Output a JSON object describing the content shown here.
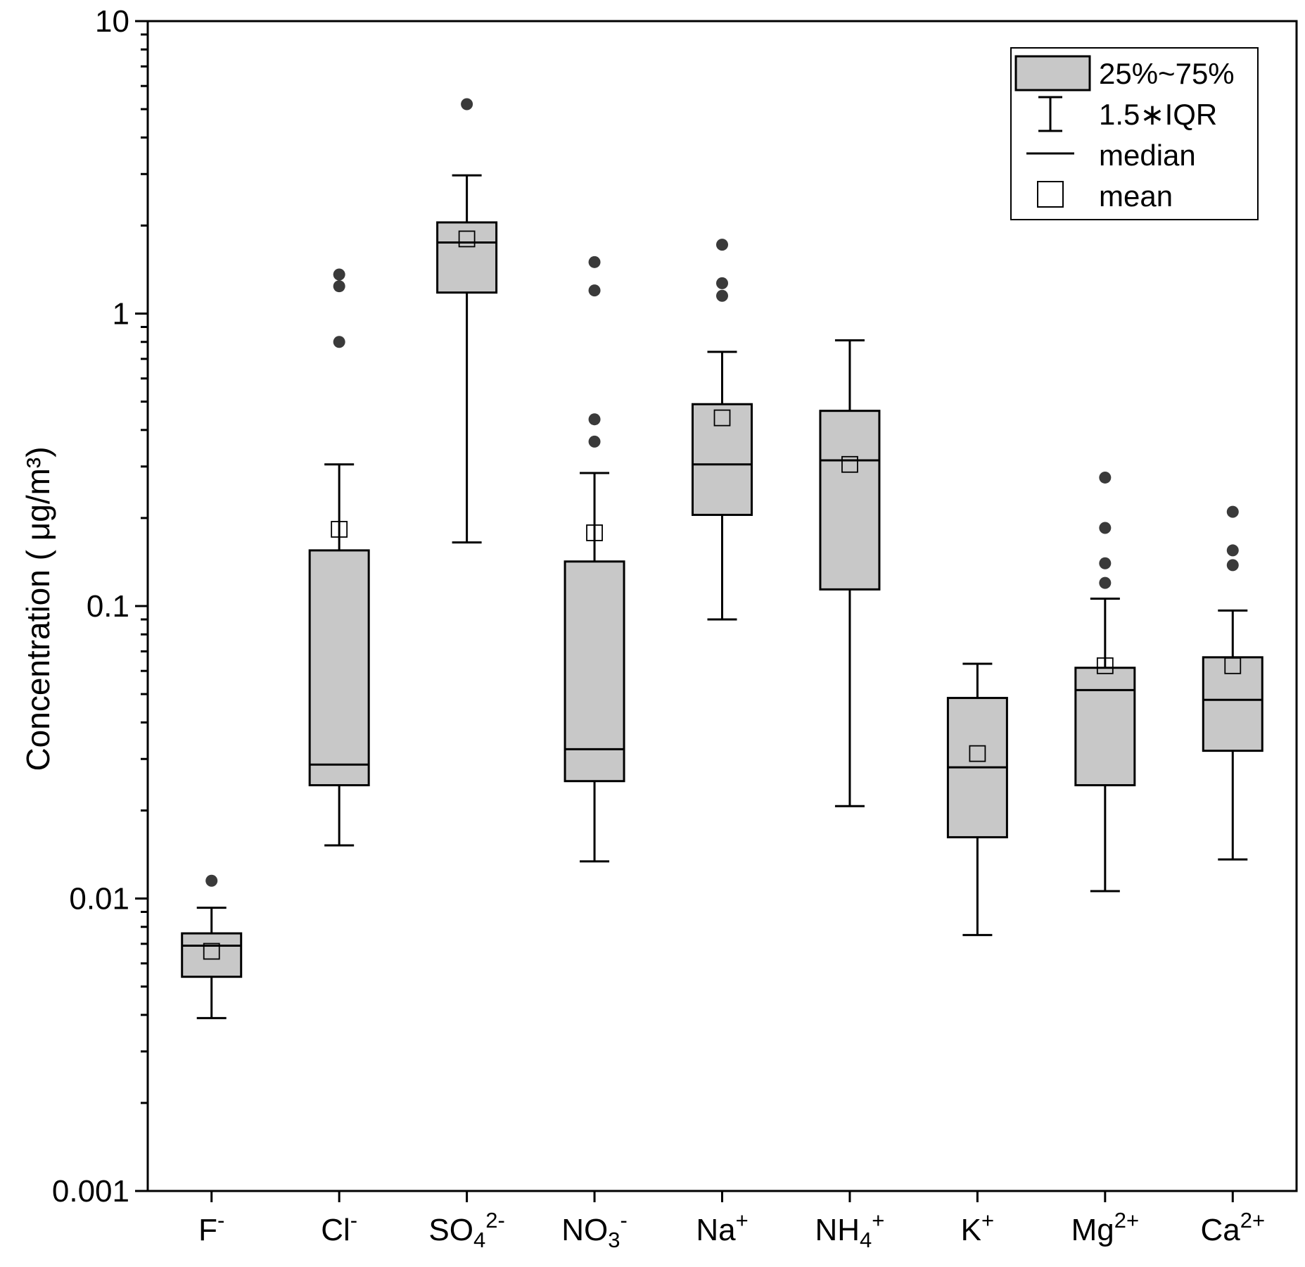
{
  "chart_data": {
    "type": "box",
    "yscale": "log",
    "ylim": [
      0.001,
      10
    ],
    "ylabel": "Concentration ( μg/m³)",
    "xlabel": "",
    "yticks": [
      {
        "value": 0.001,
        "label": "0.001"
      },
      {
        "value": 0.01,
        "label": "0.01"
      },
      {
        "value": 0.1,
        "label": "0.1"
      },
      {
        "value": 1,
        "label": "1"
      },
      {
        "value": 10,
        "label": "10"
      }
    ],
    "categories": [
      {
        "base": "F",
        "sub": "",
        "sup": "-"
      },
      {
        "base": "Cl",
        "sub": "",
        "sup": "-"
      },
      {
        "base": "SO",
        "sub": "4",
        "sup": "2-"
      },
      {
        "base": "NO",
        "sub": "3",
        "sup": "-"
      },
      {
        "base": "Na",
        "sub": "",
        "sup": "+"
      },
      {
        "base": "NH",
        "sub": "4",
        "sup": "+"
      },
      {
        "base": "K",
        "sub": "",
        "sup": "+"
      },
      {
        "base": "Mg",
        "sub": "",
        "sup": "2+"
      },
      {
        "base": "Ca",
        "sub": "",
        "sup": "2+"
      }
    ],
    "boxes": [
      {
        "whisker_low": 0.0039,
        "q1": 0.0054,
        "median": 0.0069,
        "q3": 0.0076,
        "whisker_high": 0.0093,
        "mean": 0.0066,
        "outliers": [
          0.0115
        ]
      },
      {
        "whisker_low": 0.0152,
        "q1": 0.0244,
        "median": 0.0287,
        "q3": 0.155,
        "whisker_high": 0.305,
        "mean": 0.183,
        "outliers": [
          0.8,
          1.24,
          1.36
        ]
      },
      {
        "whisker_low": 0.165,
        "q1": 1.18,
        "median": 1.75,
        "q3": 2.05,
        "whisker_high": 2.97,
        "mean": 1.8,
        "outliers": [
          5.2
        ]
      },
      {
        "whisker_low": 0.0134,
        "q1": 0.0252,
        "median": 0.0324,
        "q3": 0.142,
        "whisker_high": 0.285,
        "mean": 0.178,
        "outliers": [
          0.365,
          0.435,
          1.2,
          1.5
        ]
      },
      {
        "whisker_low": 0.09,
        "q1": 0.205,
        "median": 0.305,
        "q3": 0.49,
        "whisker_high": 0.74,
        "mean": 0.44,
        "outliers": [
          1.15,
          1.27,
          1.72
        ]
      },
      {
        "whisker_low": 0.0207,
        "q1": 0.114,
        "median": 0.315,
        "q3": 0.465,
        "whisker_high": 0.81,
        "mean": 0.305,
        "outliers": []
      },
      {
        "whisker_low": 0.0075,
        "q1": 0.0162,
        "median": 0.0281,
        "q3": 0.0485,
        "whisker_high": 0.0635,
        "mean": 0.0313,
        "outliers": []
      },
      {
        "whisker_low": 0.0106,
        "q1": 0.0244,
        "median": 0.0516,
        "q3": 0.0615,
        "whisker_high": 0.106,
        "mean": 0.0625,
        "outliers": [
          0.12,
          0.14,
          0.185,
          0.275
        ]
      },
      {
        "whisker_low": 0.0136,
        "q1": 0.032,
        "median": 0.0478,
        "q3": 0.0668,
        "whisker_high": 0.0965,
        "mean": 0.0625,
        "outliers": [
          0.138,
          0.155,
          0.21
        ]
      }
    ],
    "legend": {
      "position": "top-right",
      "entries": [
        {
          "symbol": "box",
          "label": "25%~75%"
        },
        {
          "symbol": "whisker",
          "label": "1.5∗IQR"
        },
        {
          "symbol": "line",
          "label": "median"
        },
        {
          "symbol": "square",
          "label": "mean"
        }
      ]
    },
    "colors": {
      "box_fill": "#c8c8c8",
      "stroke": "#000000",
      "outlier": "#3a3a3a",
      "mean_fill": "#ffffff"
    }
  }
}
